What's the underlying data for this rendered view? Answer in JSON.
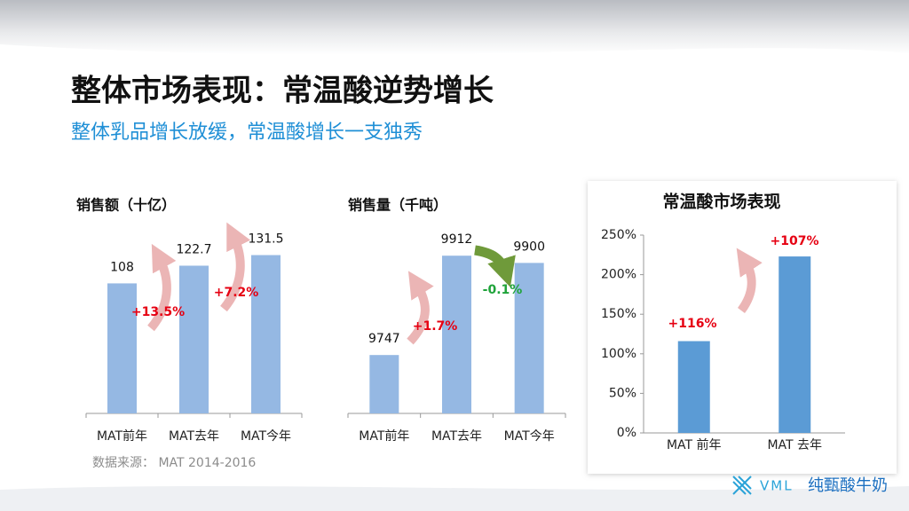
{
  "header": {
    "title": "整体市场表现：常温酸逆势增长",
    "subtitle": "整体乳品增长放缓，常温酸增长一支独秀"
  },
  "chart_data": [
    {
      "type": "bar",
      "title": "销售额（十亿）",
      "categories": [
        "MAT前年",
        "MAT去年",
        "MAT今年"
      ],
      "values": [
        108,
        122.7,
        131.5
      ],
      "color": "#95b8e3",
      "ylim": [
        0,
        140
      ],
      "annotations": [
        {
          "text": "+13.5%",
          "color": "#e60012"
        },
        {
          "text": "+7.2%",
          "color": "#e60012"
        }
      ]
    },
    {
      "type": "bar",
      "title": "销售量（千吨）",
      "categories": [
        "MAT前年",
        "MAT去年",
        "MAT今年"
      ],
      "values": [
        9747,
        9912,
        9900
      ],
      "color": "#95b8e3",
      "ylim": [
        9650,
        9930
      ],
      "annotations": [
        {
          "text": "+1.7%",
          "color": "#e60012"
        },
        {
          "text": "-0.1%",
          "color": "#1fa33a"
        }
      ]
    },
    {
      "type": "bar",
      "title": "常温酸市场表现",
      "categories": [
        "MAT 前年",
        "MAT 去年"
      ],
      "values": [
        116,
        223
      ],
      "color": "#5b9bd5",
      "ylim": [
        0,
        250
      ],
      "yticks": [
        {
          "value": 0,
          "label": "0%"
        },
        {
          "value": 50,
          "label": "50%"
        },
        {
          "value": 100,
          "label": "100%"
        },
        {
          "value": 150,
          "label": "150%"
        },
        {
          "value": 200,
          "label": "200%"
        },
        {
          "value": 250,
          "label": "250%"
        }
      ],
      "annotations": [
        {
          "text": "+116%",
          "color": "#e60012"
        },
        {
          "text": "+107%",
          "color": "#e60012"
        }
      ]
    }
  ],
  "footer": {
    "source": "数据来源： MAT 2014-2016",
    "logo": "VML",
    "brand": "纯甄酸牛奶"
  }
}
